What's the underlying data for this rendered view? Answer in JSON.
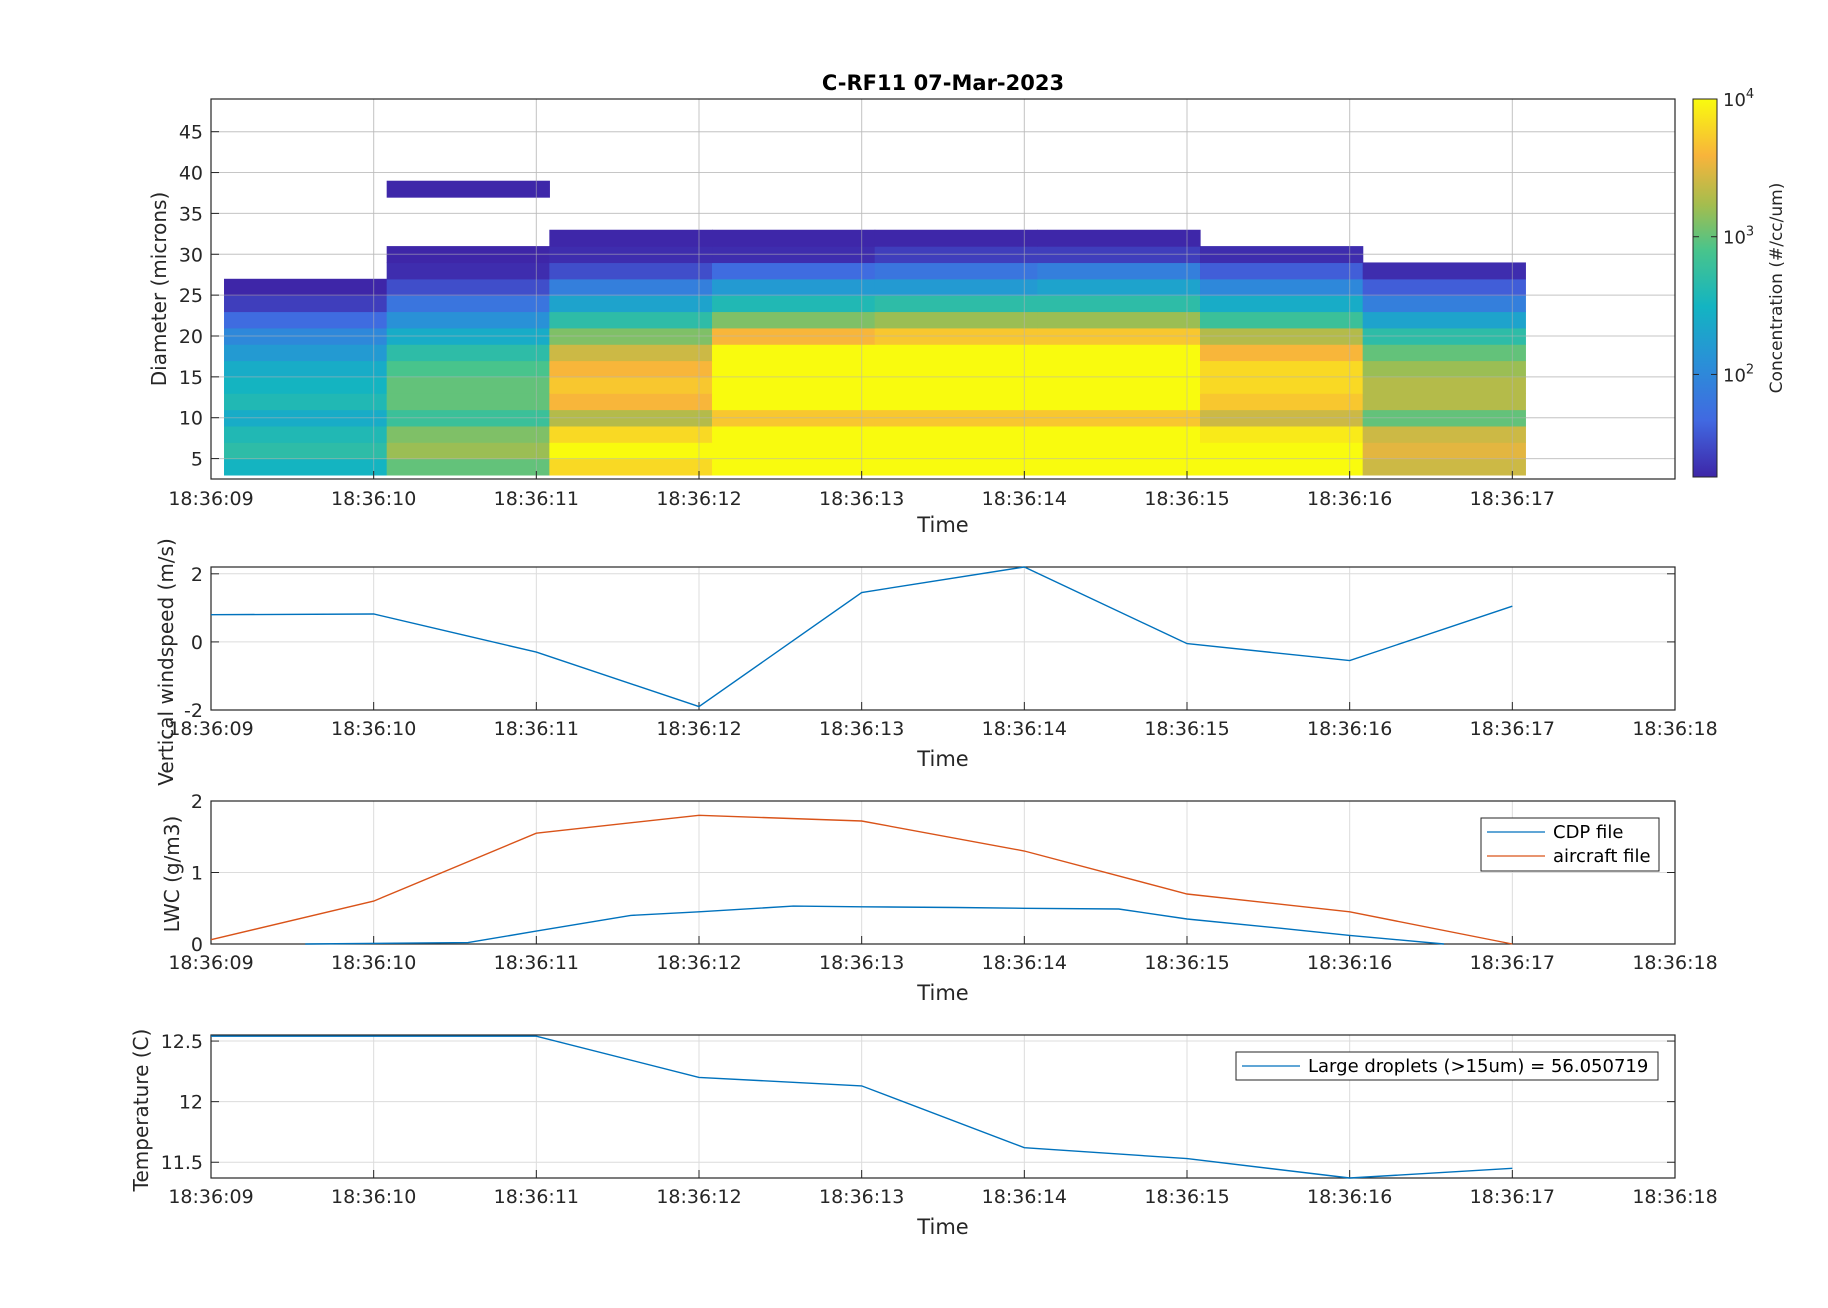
{
  "chart_data": [
    {
      "type": "heatmap",
      "title": "C-RF11 07-Mar-2023",
      "xlabel": "Time",
      "ylabel": "Diameter (microns)",
      "xticks": [
        "18:36:09",
        "18:36:10",
        "18:36:11",
        "18:36:12",
        "18:36:13",
        "18:36:14",
        "18:36:15",
        "18:36:16",
        "18:36:17"
      ],
      "xlim": [
        0,
        9
      ],
      "ylim": [
        2.5,
        49
      ],
      "yticks": [
        5,
        10,
        15,
        20,
        25,
        30,
        35,
        40,
        45
      ],
      "colorbar": {
        "label": "Concentration (#/cc/um)",
        "scale": "log",
        "range": [
          18,
          10000
        ],
        "ticks": [
          {
            "base": "10",
            "exp": "2"
          },
          {
            "base": "10",
            "exp": "3"
          },
          {
            "base": "10",
            "exp": "4"
          }
        ]
      },
      "x": [
        0.58,
        1.58,
        2.58,
        3.58,
        4.58,
        5.58,
        6.58,
        7.58
      ],
      "bin_edges": [
        3,
        5,
        7,
        9,
        11,
        13,
        15,
        17,
        19,
        21,
        23,
        25,
        27,
        29,
        31,
        33,
        35,
        37,
        39,
        41
      ],
      "log_concentration": [
        [
          2.5,
          3.0,
          3.8,
          4.2,
          4.2,
          4.2,
          4.0,
          3.4
        ],
        [
          2.7,
          3.2,
          4.0,
          4.3,
          4.3,
          4.3,
          4.1,
          3.5
        ],
        [
          2.6,
          3.1,
          3.8,
          4.2,
          4.2,
          4.2,
          3.9,
          3.4
        ],
        [
          2.4,
          2.8,
          3.3,
          3.7,
          3.7,
          3.7,
          3.4,
          3.0
        ],
        [
          2.6,
          3.0,
          3.6,
          4.0,
          4.0,
          4.0,
          3.7,
          3.3
        ],
        [
          2.5,
          3.0,
          3.7,
          4.1,
          4.1,
          4.1,
          3.8,
          3.3
        ],
        [
          2.4,
          2.9,
          3.6,
          4.1,
          4.1,
          4.1,
          3.8,
          3.2
        ],
        [
          2.2,
          2.7,
          3.4,
          4.0,
          4.0,
          4.0,
          3.6,
          3.0
        ],
        [
          2.0,
          2.4,
          3.1,
          3.6,
          3.7,
          3.7,
          3.3,
          2.7
        ],
        [
          1.7,
          2.1,
          2.7,
          3.1,
          3.2,
          3.2,
          2.8,
          2.3
        ],
        [
          1.4,
          1.8,
          2.3,
          2.6,
          2.7,
          2.7,
          2.4,
          1.9
        ],
        [
          1.2,
          1.5,
          1.9,
          2.2,
          2.2,
          2.3,
          2.0,
          1.6
        ],
        [
          null,
          1.3,
          1.5,
          1.7,
          1.8,
          1.9,
          1.6,
          1.3
        ],
        [
          null,
          1.2,
          1.3,
          1.3,
          1.4,
          1.4,
          1.3,
          null
        ],
        [
          null,
          null,
          1.26,
          1.26,
          1.26,
          1.26,
          null,
          null
        ],
        [
          null,
          null,
          null,
          null,
          null,
          null,
          null,
          null
        ],
        [
          null,
          null,
          null,
          null,
          null,
          null,
          null,
          null
        ],
        [
          null,
          1.26,
          null,
          null,
          null,
          null,
          null,
          null
        ],
        [
          null,
          null,
          null,
          null,
          null,
          null,
          null,
          null
        ]
      ]
    },
    {
      "type": "line",
      "xlabel": "Time",
      "ylabel": "Vertical windspeed (m/s)",
      "xticks": [
        "18:36:09",
        "18:36:10",
        "18:36:11",
        "18:36:12",
        "18:36:13",
        "18:36:14",
        "18:36:15",
        "18:36:16",
        "18:36:17",
        "18:36:18"
      ],
      "xlim": [
        0,
        9
      ],
      "ylim": [
        -2,
        2.2
      ],
      "yticks": [
        -2,
        0,
        2
      ],
      "series": [
        {
          "color": "#0072BD",
          "x": [
            0,
            1,
            2,
            3,
            4,
            5,
            6,
            7,
            8
          ],
          "values": [
            0.8,
            0.82,
            -0.3,
            -1.9,
            1.45,
            2.2,
            -0.05,
            -0.55,
            1.05
          ]
        }
      ]
    },
    {
      "type": "line",
      "xlabel": "Time",
      "ylabel": "LWC (g/m3)",
      "xticks": [
        "18:36:09",
        "18:36:10",
        "18:36:11",
        "18:36:12",
        "18:36:13",
        "18:36:14",
        "18:36:15",
        "18:36:16",
        "18:36:17",
        "18:36:18"
      ],
      "xlim": [
        0,
        9
      ],
      "ylim": [
        0,
        2
      ],
      "yticks": [
        0,
        1,
        2
      ],
      "legend": "top-right",
      "series": [
        {
          "name": "CDP file",
          "color": "#0072BD",
          "x": [
            0.58,
            1.58,
            2,
            2.58,
            3,
            3.58,
            4,
            4.58,
            5,
            5.58,
            6,
            6.58,
            7,
            7.58
          ],
          "values": [
            0,
            0.02,
            0.18,
            0.4,
            0.45,
            0.53,
            0.52,
            0.51,
            0.5,
            0.49,
            0.35,
            0.22,
            0.12,
            0
          ]
        },
        {
          "name": "aircraft file",
          "color": "#D95319",
          "x": [
            0,
            1,
            2,
            3,
            4,
            5,
            6,
            7,
            8
          ],
          "values": [
            0.06,
            0.6,
            1.55,
            1.8,
            1.72,
            1.3,
            0.7,
            0.45,
            0
          ]
        }
      ]
    },
    {
      "type": "line",
      "xlabel": "Time",
      "ylabel": "Temperature (C)",
      "xticks": [
        "18:36:09",
        "18:36:10",
        "18:36:11",
        "18:36:12",
        "18:36:13",
        "18:36:14",
        "18:36:15",
        "18:36:16",
        "18:36:17",
        "18:36:18"
      ],
      "xlim": [
        0,
        9
      ],
      "ylim": [
        11.37,
        12.55
      ],
      "yticks": [
        11.5,
        12,
        12.5
      ],
      "legend": "top-right",
      "series": [
        {
          "name": "Large droplets (>15um) = 56.050719",
          "color": "#0072BD",
          "x": [
            0,
            1,
            2,
            3,
            4,
            5,
            6,
            7,
            8
          ],
          "values": [
            12.54,
            12.54,
            12.54,
            12.2,
            12.13,
            11.62,
            11.53,
            11.37,
            11.45
          ]
        }
      ]
    }
  ]
}
